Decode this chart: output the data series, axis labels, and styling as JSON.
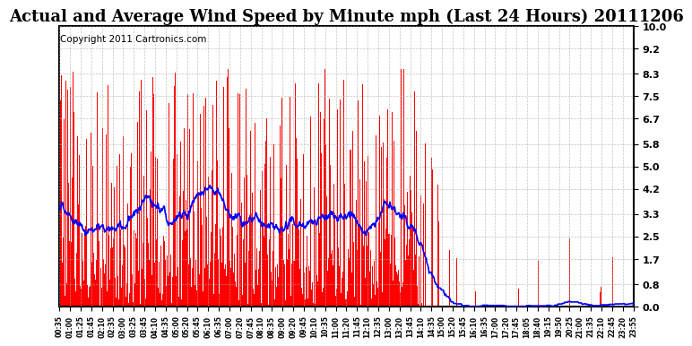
{
  "title": "Actual and Average Wind Speed by Minute mph (Last 24 Hours) 20111206",
  "copyright": "Copyright 2011 Cartronics.com",
  "yticks": [
    0.0,
    0.8,
    1.7,
    2.5,
    3.3,
    4.2,
    5.0,
    5.8,
    6.7,
    7.5,
    8.3,
    9.2,
    10.0
  ],
  "ylim": [
    0.0,
    10.0
  ],
  "bar_color": "#ff0000",
  "line_color": "#0000ff",
  "bg_color": "#ffffff",
  "grid_color": "#aaaaaa",
  "title_fontsize": 13,
  "copyright_fontsize": 7.5
}
